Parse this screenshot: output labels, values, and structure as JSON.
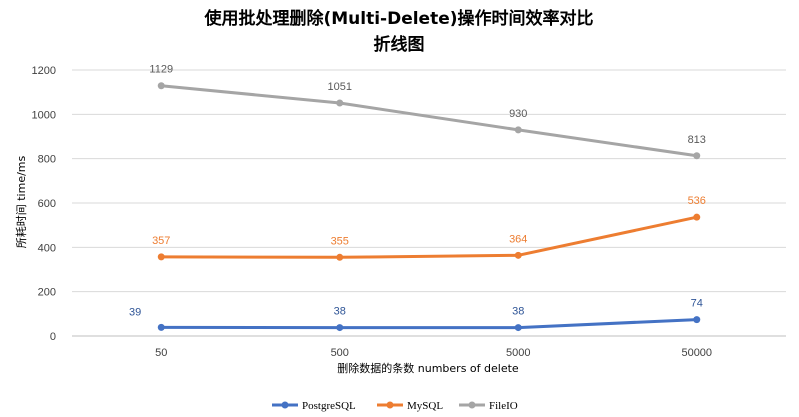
{
  "chart_data": {
    "type": "line",
    "title": "使用批处理删除(Multi-Delete)操作时间效率对比",
    "subtitle": "折线图",
    "xlabel": "删除数据的条数 numbers of delete",
    "ylabel": "所耗时间 time/ms",
    "categories": [
      "50",
      "500",
      "5000",
      "50000"
    ],
    "ylim": [
      0,
      1200
    ],
    "yticks": [
      0,
      200,
      400,
      600,
      800,
      1000,
      1200
    ],
    "grid": true,
    "legend_position": "bottom",
    "series": [
      {
        "name": "PostgreSQL",
        "values": [
          39,
          38,
          38,
          74
        ],
        "color": "#4472c4"
      },
      {
        "name": "MySQL",
        "values": [
          357,
          355,
          364,
          536
        ],
        "color": "#ed7d31"
      },
      {
        "name": "FileIO",
        "values": [
          1129,
          1051,
          930,
          813
        ],
        "color": "#a5a5a5"
      }
    ]
  }
}
